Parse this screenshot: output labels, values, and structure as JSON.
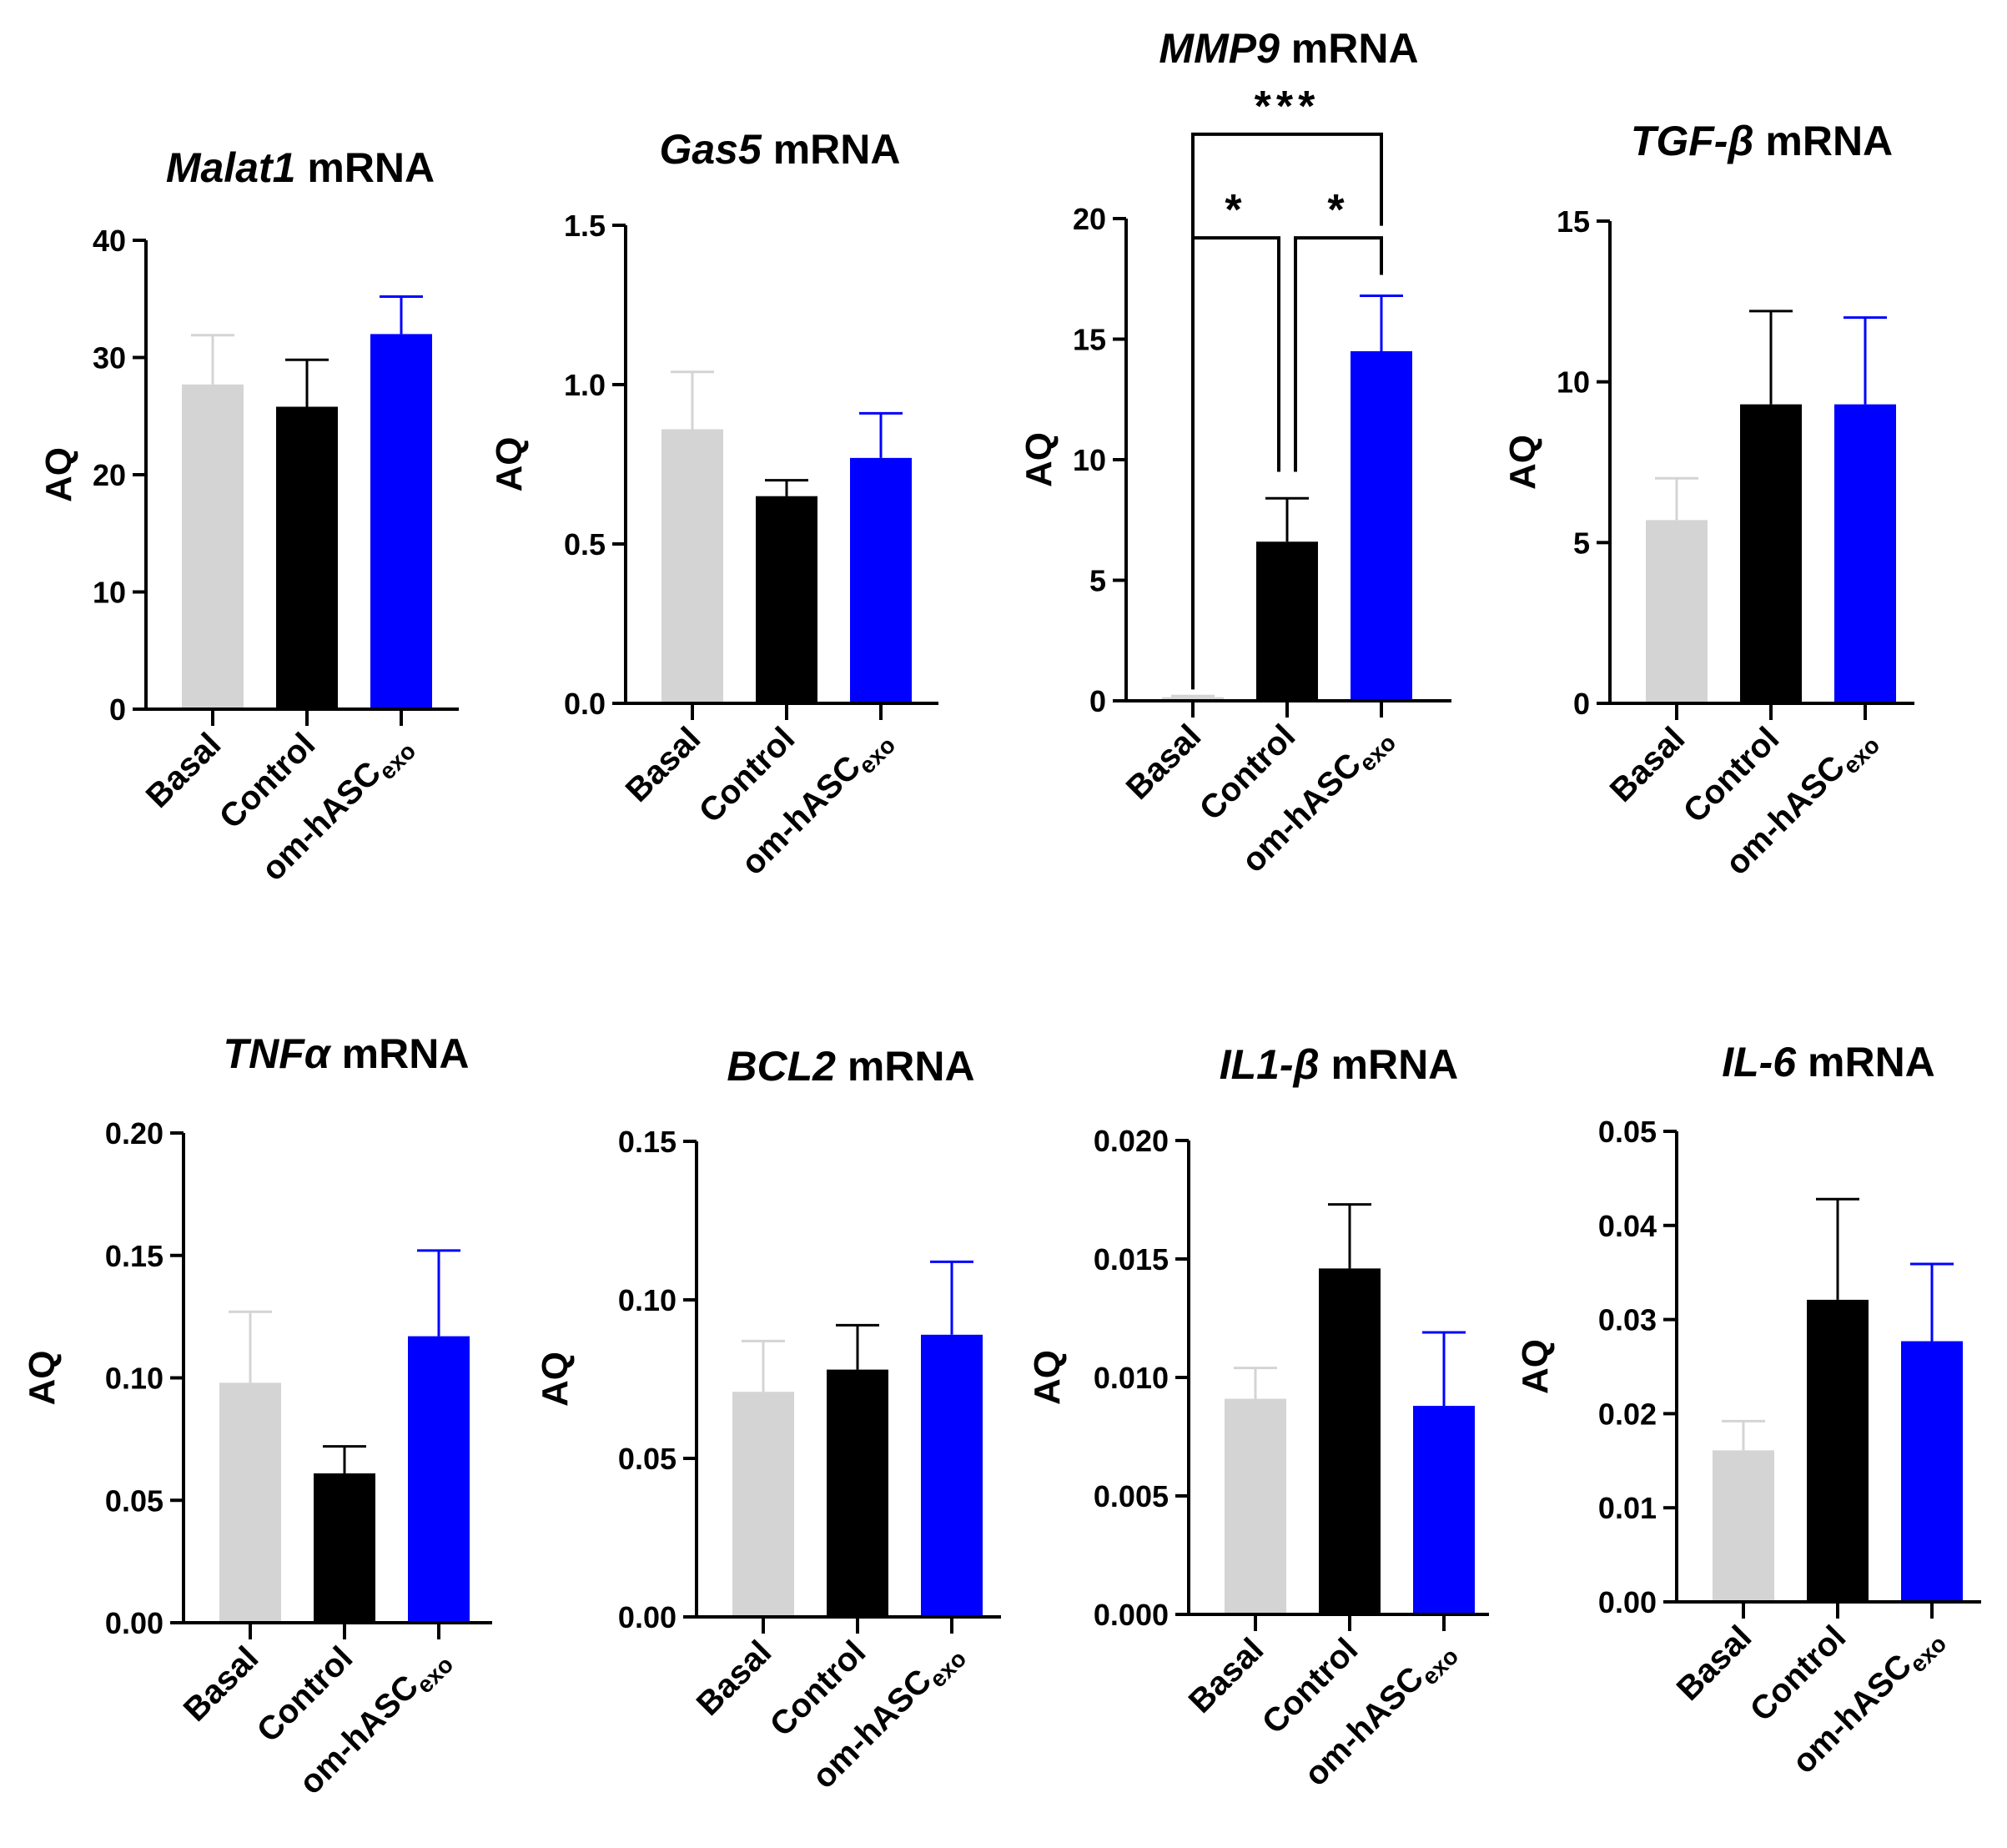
{
  "colors": {
    "Basal": "#d4d4d4",
    "Control": "#000000",
    "om-hASC_exo": "#0000ff",
    "axis": "#000000"
  },
  "chart_data": [
    {
      "type": "bar",
      "title_gene": "Malat1",
      "title_suffix": " mRNA",
      "ylabel": "AQ",
      "ylim": [
        0,
        40
      ],
      "yticks": [
        "0",
        "10",
        "20",
        "30",
        "40"
      ],
      "ytick_values": [
        0,
        10,
        20,
        30,
        40
      ],
      "categories": [
        "Basal",
        "Control",
        "om-hASC"
      ],
      "category_subscripts": [
        "",
        "",
        "exo"
      ],
      "values": [
        27.7,
        25.8,
        32.0
      ],
      "errors": [
        4.2,
        4.0,
        3.2
      ],
      "annotations": []
    },
    {
      "type": "bar",
      "title_gene": "Gas5",
      "title_suffix": " mRNA",
      "ylabel": "AQ",
      "ylim": [
        0,
        1.5
      ],
      "yticks": [
        "0.0",
        "0.5",
        "1.0",
        "1.5"
      ],
      "ytick_values": [
        0,
        0.5,
        1.0,
        1.5
      ],
      "categories": [
        "Basal",
        "Control",
        "om-hASC"
      ],
      "category_subscripts": [
        "",
        "",
        "exo"
      ],
      "values": [
        0.86,
        0.65,
        0.77
      ],
      "errors": [
        0.18,
        0.05,
        0.14
      ],
      "annotations": []
    },
    {
      "type": "bar",
      "title_gene": "MMP9",
      "title_suffix": " mRNA",
      "ylabel": "AQ",
      "ylim": [
        0,
        20
      ],
      "yticks": [
        "0",
        "5",
        "10",
        "15",
        "20"
      ],
      "ytick_values": [
        0,
        5,
        10,
        15,
        20
      ],
      "categories": [
        "Basal",
        "Control",
        "om-hASC"
      ],
      "category_subscripts": [
        "",
        "",
        "exo"
      ],
      "values": [
        0.15,
        6.6,
        14.5
      ],
      "errors": [
        0.05,
        1.8,
        2.3
      ],
      "annotations": [
        {
          "from": 0,
          "to": 1,
          "label": "*",
          "level": 19.2
        },
        {
          "from": 1,
          "to": 2,
          "label": "*",
          "level": 19.2
        },
        {
          "from": 0,
          "to": 2,
          "label": "***",
          "level": 23.5
        }
      ]
    },
    {
      "type": "bar",
      "title_gene": "TGF-β",
      "title_suffix": " mRNA",
      "ylabel": "AQ",
      "ylim": [
        0,
        15
      ],
      "yticks": [
        "0",
        "5",
        "10",
        "15"
      ],
      "ytick_values": [
        0,
        5,
        10,
        15
      ],
      "categories": [
        "Basal",
        "Control",
        "om-hASC"
      ],
      "category_subscripts": [
        "",
        "",
        "exo"
      ],
      "values": [
        5.7,
        9.3,
        9.3
      ],
      "errors": [
        1.3,
        2.9,
        2.7
      ],
      "annotations": []
    },
    {
      "type": "bar",
      "title_gene": "TNFα",
      "title_suffix": " mRNA",
      "ylabel": "AQ",
      "ylim": [
        0,
        0.2
      ],
      "yticks": [
        "0.00",
        "0.05",
        "0.10",
        "0.15",
        "0.20"
      ],
      "ytick_values": [
        0,
        0.05,
        0.1,
        0.15,
        0.2
      ],
      "categories": [
        "Basal",
        "Control",
        "om-hASC"
      ],
      "category_subscripts": [
        "",
        "",
        "exo"
      ],
      "values": [
        0.098,
        0.061,
        0.117
      ],
      "errors": [
        0.029,
        0.011,
        0.035
      ],
      "annotations": []
    },
    {
      "type": "bar",
      "title_gene": "BCL2",
      "title_suffix": " mRNA",
      "ylabel": "AQ",
      "ylim": [
        0,
        0.15
      ],
      "yticks": [
        "0.00",
        "0.05",
        "0.10",
        "0.15"
      ],
      "ytick_values": [
        0,
        0.05,
        0.1,
        0.15
      ],
      "categories": [
        "Basal",
        "Control",
        "om-hASC"
      ],
      "category_subscripts": [
        "",
        "",
        "exo"
      ],
      "values": [
        0.071,
        0.078,
        0.089
      ],
      "errors": [
        0.016,
        0.014,
        0.023
      ],
      "annotations": []
    },
    {
      "type": "bar",
      "title_gene": "IL1-β",
      "title_suffix": " mRNA",
      "ylabel": "AQ",
      "ylim": [
        0,
        0.02
      ],
      "yticks": [
        "0.000",
        "0.005",
        "0.010",
        "0.015",
        "0.020"
      ],
      "ytick_values": [
        0,
        0.005,
        0.01,
        0.015,
        0.02
      ],
      "categories": [
        "Basal",
        "Control",
        "om-hASC"
      ],
      "category_subscripts": [
        "",
        "",
        "exo"
      ],
      "values": [
        0.0091,
        0.0146,
        0.0088
      ],
      "errors": [
        0.0013,
        0.0027,
        0.0031
      ],
      "annotations": []
    },
    {
      "type": "bar",
      "title_gene": "IL-6",
      "title_suffix": " mRNA",
      "ylabel": "AQ",
      "ylim": [
        0,
        0.05
      ],
      "yticks": [
        "0.00",
        "0.01",
        "0.02",
        "0.03",
        "0.04",
        "0.05"
      ],
      "ytick_values": [
        0,
        0.01,
        0.02,
        0.03,
        0.04,
        0.05
      ],
      "categories": [
        "Basal",
        "Control",
        "om-hASC"
      ],
      "category_subscripts": [
        "",
        "",
        "exo"
      ],
      "values": [
        0.0161,
        0.0321,
        0.0277
      ],
      "errors": [
        0.0031,
        0.0107,
        0.0082
      ],
      "annotations": []
    }
  ]
}
